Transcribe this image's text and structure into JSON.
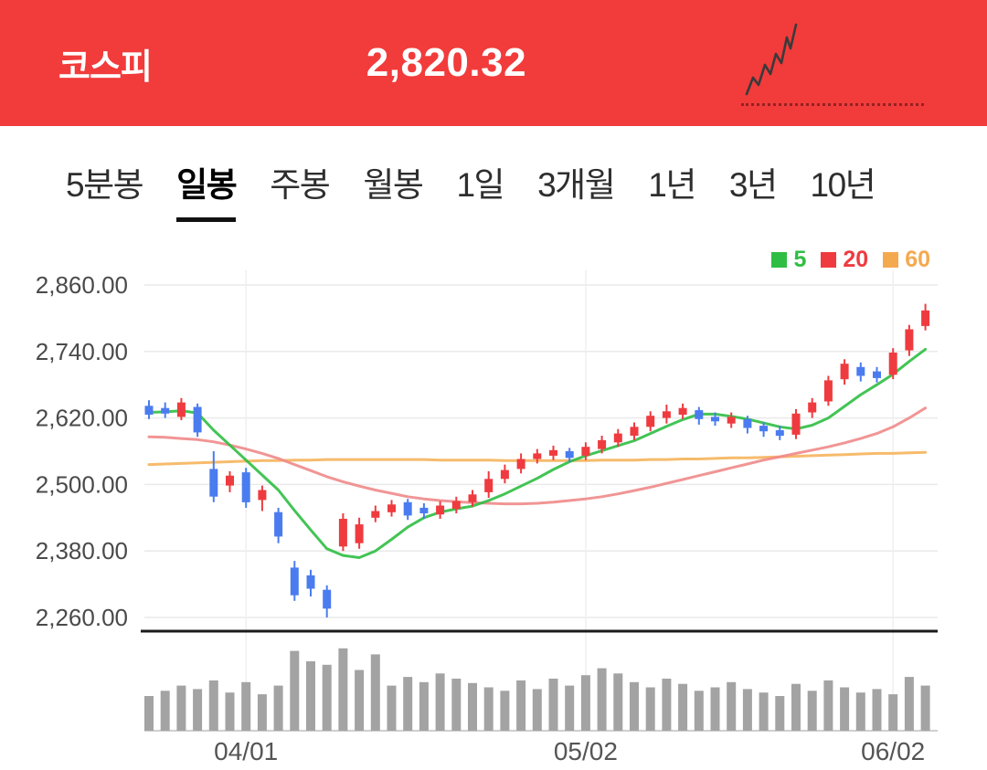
{
  "header": {
    "title": "코스피",
    "price": "2,820.32",
    "background_color": "#f23b3b",
    "sparkline_icon": "rising-stock-sparkline"
  },
  "tabs": {
    "items": [
      {
        "label": "5분봉",
        "active": false
      },
      {
        "label": "일봉",
        "active": true
      },
      {
        "label": "주봉",
        "active": false
      },
      {
        "label": "월봉",
        "active": false
      },
      {
        "label": "1일",
        "active": false
      },
      {
        "label": "3개월",
        "active": false
      },
      {
        "label": "1년",
        "active": false
      },
      {
        "label": "3년",
        "active": false
      },
      {
        "label": "10년",
        "active": false
      }
    ]
  },
  "legend": {
    "items": [
      {
        "label": "5",
        "color": "#2fbe43"
      },
      {
        "label": "20",
        "color": "#ef3b3f"
      },
      {
        "label": "60",
        "color": "#f5a94f"
      }
    ]
  },
  "chart_data": {
    "type": "candlestick",
    "title": "코스피 일봉 차트",
    "y_ticks": [
      "2,860.00",
      "2,740.00",
      "2,620.00",
      "2,500.00",
      "2,380.00",
      "2,260.00"
    ],
    "ylim": [
      2240,
      2890
    ],
    "x_ticks": [
      {
        "label": "04/01",
        "index": 6
      },
      {
        "label": "05/02",
        "index": 27
      },
      {
        "label": "06/02",
        "index": 46
      }
    ],
    "grid": true,
    "legend_position": "top-right",
    "up_color": "#ef3b3f",
    "down_color": "#4a7cf0",
    "volume_color": "#a3a3a3",
    "candles_format": [
      "open",
      "high",
      "low",
      "close"
    ],
    "candles": [
      [
        2642,
        2652,
        2618,
        2626
      ],
      [
        2638,
        2648,
        2620,
        2628
      ],
      [
        2622,
        2656,
        2616,
        2648
      ],
      [
        2640,
        2646,
        2586,
        2594
      ],
      [
        2528,
        2560,
        2468,
        2478
      ],
      [
        2498,
        2524,
        2486,
        2516
      ],
      [
        2522,
        2530,
        2458,
        2468
      ],
      [
        2472,
        2498,
        2452,
        2490
      ],
      [
        2450,
        2458,
        2394,
        2406
      ],
      [
        2350,
        2362,
        2290,
        2300
      ],
      [
        2336,
        2346,
        2298,
        2312
      ],
      [
        2310,
        2318,
        2260,
        2276
      ],
      [
        2388,
        2448,
        2380,
        2438
      ],
      [
        2394,
        2440,
        2384,
        2428
      ],
      [
        2440,
        2462,
        2432,
        2452
      ],
      [
        2450,
        2472,
        2442,
        2464
      ],
      [
        2468,
        2474,
        2436,
        2444
      ],
      [
        2458,
        2466,
        2438,
        2448
      ],
      [
        2446,
        2470,
        2438,
        2462
      ],
      [
        2456,
        2478,
        2448,
        2470
      ],
      [
        2468,
        2490,
        2460,
        2482
      ],
      [
        2486,
        2524,
        2476,
        2510
      ],
      [
        2510,
        2536,
        2502,
        2526
      ],
      [
        2528,
        2556,
        2520,
        2546
      ],
      [
        2546,
        2564,
        2538,
        2556
      ],
      [
        2552,
        2570,
        2544,
        2562
      ],
      [
        2560,
        2566,
        2540,
        2548
      ],
      [
        2552,
        2576,
        2544,
        2568
      ],
      [
        2564,
        2588,
        2556,
        2580
      ],
      [
        2576,
        2600,
        2568,
        2592
      ],
      [
        2588,
        2612,
        2580,
        2604
      ],
      [
        2604,
        2632,
        2596,
        2624
      ],
      [
        2620,
        2644,
        2610,
        2632
      ],
      [
        2626,
        2646,
        2618,
        2638
      ],
      [
        2634,
        2640,
        2608,
        2618
      ],
      [
        2622,
        2630,
        2606,
        2614
      ],
      [
        2610,
        2630,
        2602,
        2622
      ],
      [
        2618,
        2624,
        2592,
        2602
      ],
      [
        2606,
        2612,
        2586,
        2596
      ],
      [
        2598,
        2606,
        2580,
        2588
      ],
      [
        2590,
        2636,
        2582,
        2628
      ],
      [
        2630,
        2656,
        2620,
        2648
      ],
      [
        2650,
        2696,
        2642,
        2688
      ],
      [
        2690,
        2726,
        2680,
        2718
      ],
      [
        2712,
        2720,
        2686,
        2696
      ],
      [
        2704,
        2712,
        2684,
        2692
      ],
      [
        2698,
        2746,
        2690,
        2738
      ],
      [
        2742,
        2788,
        2732,
        2780
      ],
      [
        2786,
        2826,
        2778,
        2814
      ]
    ],
    "volumes": [
      40,
      46,
      52,
      48,
      58,
      44,
      56,
      42,
      52,
      92,
      80,
      76,
      95,
      70,
      88,
      52,
      62,
      56,
      66,
      60,
      55,
      50,
      46,
      58,
      48,
      60,
      52,
      64,
      72,
      66,
      56,
      50,
      60,
      54,
      46,
      50,
      56,
      48,
      44,
      40,
      54,
      46,
      58,
      50,
      44,
      48,
      42,
      62,
      52
    ],
    "ma": {
      "ma5": {
        "name": "5",
        "color": "#2fbe43",
        "values": [
          2630,
          2631,
          2633,
          2629,
          2598,
          2571,
          2544,
          2517,
          2490,
          2453,
          2418,
          2384,
          2372,
          2368,
          2380,
          2401,
          2423,
          2440,
          2450,
          2456,
          2461,
          2471,
          2483,
          2497,
          2511,
          2527,
          2541,
          2552,
          2561,
          2570,
          2579,
          2592,
          2605,
          2617,
          2627,
          2627,
          2623,
          2618,
          2611,
          2604,
          2600,
          2607,
          2620,
          2641,
          2662,
          2680,
          2699,
          2722,
          2744
        ]
      },
      "ma20": {
        "name": "20",
        "color": "#f08a8a",
        "values": [
          2586,
          2585,
          2583,
          2581,
          2577,
          2571,
          2564,
          2556,
          2547,
          2536,
          2525,
          2514,
          2505,
          2497,
          2490,
          2484,
          2478,
          2474,
          2471,
          2469,
          2467,
          2466,
          2465,
          2465,
          2466,
          2468,
          2471,
          2474,
          2478,
          2483,
          2489,
          2495,
          2502,
          2509,
          2516,
          2523,
          2530,
          2537,
          2544,
          2550,
          2556,
          2562,
          2568,
          2575,
          2583,
          2592,
          2604,
          2620,
          2638
        ]
      },
      "ma60": {
        "name": "60",
        "color": "#f5b45c",
        "values": [
          2536,
          2537,
          2538,
          2539,
          2540,
          2541,
          2542,
          2543,
          2543,
          2544,
          2544,
          2545,
          2545,
          2545,
          2545,
          2545,
          2545,
          2545,
          2544,
          2544,
          2544,
          2544,
          2543,
          2543,
          2543,
          2543,
          2543,
          2543,
          2544,
          2544,
          2544,
          2545,
          2545,
          2546,
          2546,
          2547,
          2548,
          2548,
          2549,
          2550,
          2551,
          2552,
          2553,
          2554,
          2555,
          2556,
          2556,
          2557,
          2558
        ]
      }
    }
  }
}
